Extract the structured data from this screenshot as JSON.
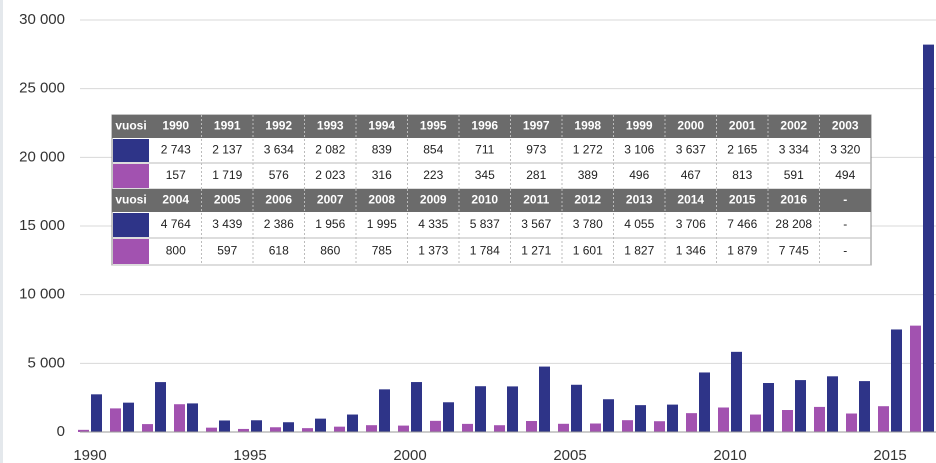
{
  "chart_data": {
    "type": "bar",
    "categories": [
      "1990",
      "1991",
      "1992",
      "1993",
      "1994",
      "1995",
      "1996",
      "1997",
      "1998",
      "1999",
      "2000",
      "2001",
      "2002",
      "2003",
      "2004",
      "2005",
      "2006",
      "2007",
      "2008",
      "2009",
      "2010",
      "2011",
      "2012",
      "2013",
      "2014",
      "2015",
      "2016"
    ],
    "series": [
      {
        "color": "#2e3488",
        "values": [
          2743,
          2137,
          3634,
          2082,
          839,
          854,
          711,
          973,
          1272,
          3106,
          3637,
          2165,
          3334,
          3320,
          4764,
          3439,
          2386,
          1956,
          1995,
          4335,
          5837,
          3567,
          3780,
          4055,
          3706,
          7466,
          28208
        ],
        "value_labels": [
          "2 743",
          "2 137",
          "3 634",
          "2 082",
          "839",
          "854",
          "711",
          "973",
          "1 272",
          "3 106",
          "3 637",
          "2 165",
          "3 334",
          "3 320",
          "4 764",
          "3 439",
          "2 386",
          "1 956",
          "1 995",
          "4 335",
          "5 837",
          "3 567",
          "3 780",
          "4 055",
          "3 706",
          "7 466",
          "28 208"
        ]
      },
      {
        "color": "#a252b0",
        "values": [
          157,
          1719,
          576,
          2023,
          316,
          223,
          345,
          281,
          389,
          496,
          467,
          813,
          591,
          494,
          800,
          597,
          618,
          860,
          785,
          1373,
          1784,
          1271,
          1601,
          1827,
          1346,
          1879,
          7745
        ],
        "value_labels": [
          "157",
          "1 719",
          "576",
          "2 023",
          "316",
          "223",
          "345",
          "281",
          "389",
          "496",
          "467",
          "813",
          "591",
          "494",
          "800",
          "597",
          "618",
          "860",
          "785",
          "1 373",
          "1 784",
          "1 271",
          "1 601",
          "1 827",
          "1 346",
          "1 879",
          "7 745"
        ]
      }
    ],
    "ylim": [
      0,
      30000
    ],
    "yticks": [
      0,
      {
        "value": 5000,
        "label": "5 000"
      },
      {
        "value": 10000,
        "label": "10 000"
      },
      {
        "value": 15000,
        "label": "15 000"
      },
      {
        "value": 20000,
        "label": "20 000"
      },
      {
        "value": 25000,
        "label": "25 000"
      },
      {
        "value": 30000,
        "label": "30 000"
      }
    ],
    "grid": true,
    "table": {
      "header_label": "vuosi",
      "empty_cell": "-"
    }
  }
}
